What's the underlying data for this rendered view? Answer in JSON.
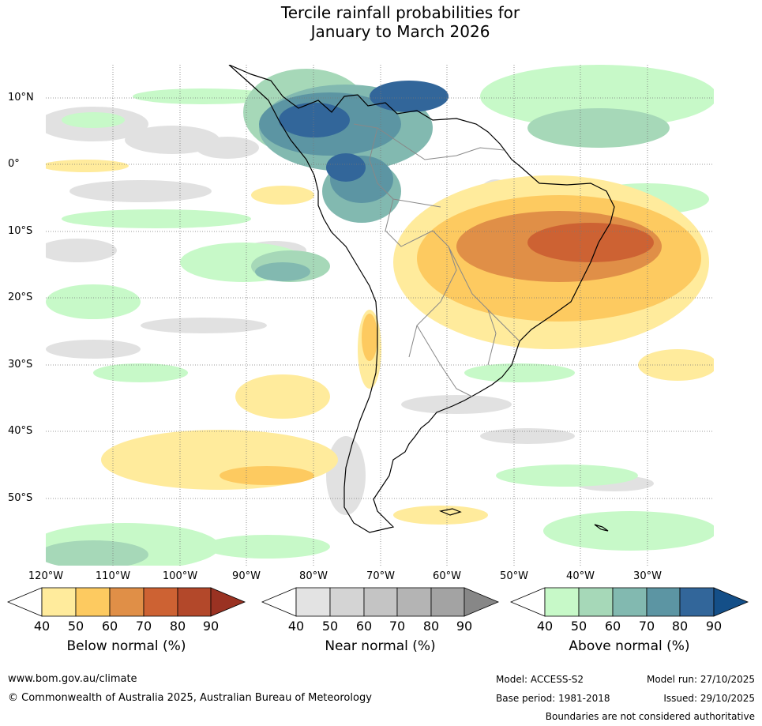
{
  "title_line1": "Tercile rainfall probabilities for",
  "title_line2": "January to March 2026",
  "lat_labels": [
    "10°N",
    "0°",
    "10°S",
    "20°S",
    "30°S",
    "40°S",
    "50°S"
  ],
  "lon_labels": [
    "120°W",
    "110°W",
    "100°W",
    "90°W",
    "80°W",
    "70°W",
    "60°W",
    "50°W",
    "40°W",
    "30°W"
  ],
  "colorbars": [
    {
      "title": "Below normal (%)",
      "ticks": [
        "40",
        "50",
        "60",
        "70",
        "80",
        "90"
      ],
      "colors": [
        "#ffffff",
        "#ffeb9c",
        "#fdca60",
        "#e08f47",
        "#cd6233",
        "#b3482a",
        "#9a3222"
      ]
    },
    {
      "title": "Near normal (%)",
      "ticks": [
        "40",
        "50",
        "60",
        "70",
        "80",
        "90"
      ],
      "colors": [
        "#ffffff",
        "#e3e3e3",
        "#d4d4d4",
        "#c4c4c4",
        "#b4b4b4",
        "#a3a3a3",
        "#878787"
      ]
    },
    {
      "title": "Above normal (%)",
      "ticks": [
        "40",
        "50",
        "60",
        "70",
        "80",
        "90"
      ],
      "colors": [
        "#ffffff",
        "#c7f9c8",
        "#a6d8b8",
        "#82b9b0",
        "#5c95a3",
        "#32669a",
        "#144f88"
      ]
    }
  ],
  "footer": {
    "website": "www.bom.gov.au/climate",
    "copyright": "© Commonwealth of Australia 2025, Australian Bureau of Meteorology",
    "model": "Model: ACCESS-S2",
    "model_run": "Model run: 27/10/2025",
    "base_period": "Base period: 1981-2018",
    "issued": "Issued: 29/10/2025",
    "boundaries_note": "Boundaries are not considered authoritative"
  }
}
